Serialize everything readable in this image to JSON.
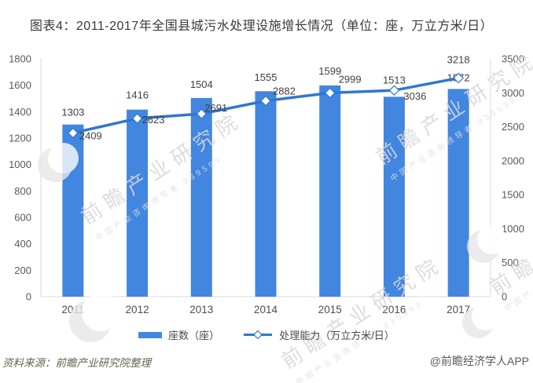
{
  "title": "图表4：2011-2017年全国县城污水处理设施增长情况（单位：座，万立方米/日）",
  "chart_data": {
    "type": "bar+line",
    "categories": [
      "2011",
      "2012",
      "2013",
      "2014",
      "2015",
      "2016",
      "2017"
    ],
    "series": [
      {
        "name": "座数（座）",
        "type": "bar",
        "axis": "left",
        "color": "#4286e0",
        "values": [
          1303,
          1416,
          1504,
          1555,
          1599,
          1513,
          1572
        ]
      },
      {
        "name": "处理能力（万立方米/日）",
        "type": "line",
        "axis": "right",
        "color": "#3076d2",
        "marker": "diamond",
        "values": [
          2409,
          2623,
          2691,
          2882,
          2999,
          3036,
          3218
        ]
      }
    ],
    "left_axis": {
      "min": 0,
      "max": 1800,
      "step": 200,
      "ticks": [
        "1800",
        "1600",
        "1400",
        "1200",
        "1000",
        "800",
        "600",
        "400",
        "200",
        "0"
      ]
    },
    "right_axis": {
      "min": 0,
      "max": 3500,
      "step": 500,
      "ticks": [
        "3500",
        "3000",
        "2500",
        "2000",
        "1500",
        "1000",
        "500",
        "0"
      ]
    },
    "grid": false,
    "legend_position": "bottom",
    "data_labels": true
  },
  "footer": {
    "source": "资料来源：前瞻产业研究院整理",
    "credit": "@前瞻经济学人APP"
  },
  "watermarks": {
    "brand": "前瞻产业研究院",
    "sub": "中国产业咨询领导者 839599"
  },
  "colors": {
    "bar": "#4286e0",
    "line": "#3076d2",
    "axis_line": "#d9d9d9",
    "tick_text": "#595959",
    "xlabel_text": "#4f4f4f",
    "label_text": "#3f3f3f",
    "title_text": "#3a3a3a",
    "source_text": "#65654f",
    "credit_text": "#5a5a5a"
  }
}
